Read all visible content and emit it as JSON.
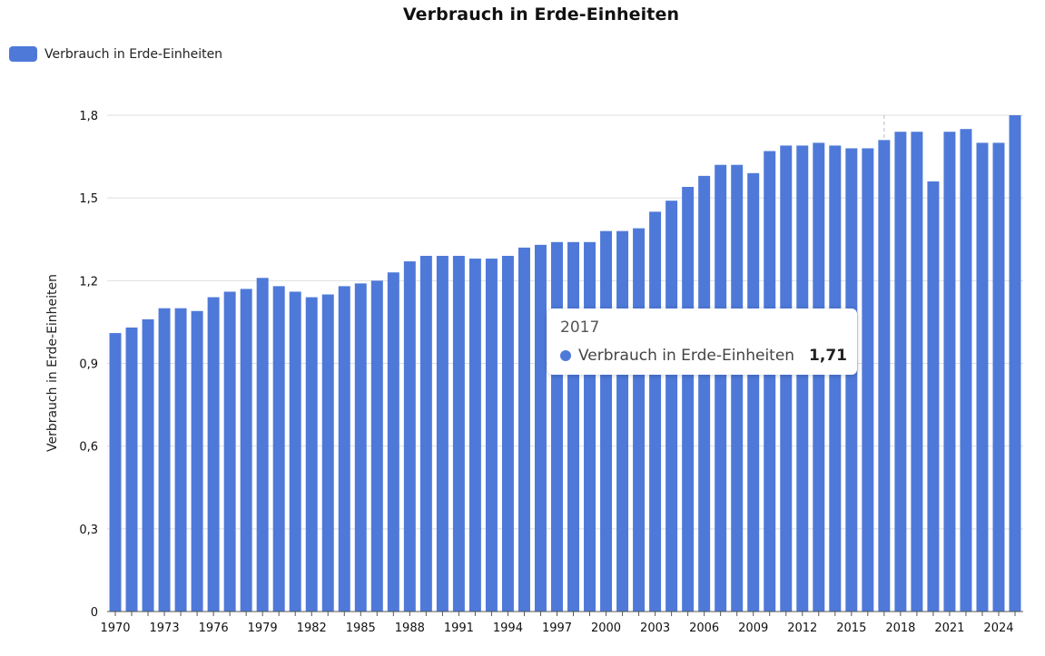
{
  "colors": {
    "bar": "#4e79d9",
    "grid": "#dedede",
    "axis": "#555555",
    "crosshair": "#bbbbbb"
  },
  "chart_data": {
    "type": "bar",
    "title": "Verbrauch in Erde-Einheiten",
    "xlabel": "",
    "ylabel": "Verbrauch in Erde-Einheiten",
    "legend_position": "top-left",
    "grid": true,
    "ylim": [
      0,
      1.8
    ],
    "yticks": [
      "0",
      "0,3",
      "0,6",
      "0,9",
      "1,2",
      "1,5",
      "1,8"
    ],
    "ytick_values": [
      0,
      0.3,
      0.6,
      0.9,
      1.2,
      1.5,
      1.8
    ],
    "x_tick_labels": [
      "1970",
      "1973",
      "1976",
      "1979",
      "1982",
      "1985",
      "1988",
      "1991",
      "1994",
      "1997",
      "2000",
      "2003",
      "2006",
      "2009",
      "2012",
      "2015",
      "2018",
      "2021",
      "2024"
    ],
    "categories": [
      "1970",
      "1971",
      "1972",
      "1973",
      "1974",
      "1975",
      "1976",
      "1977",
      "1978",
      "1979",
      "1980",
      "1981",
      "1982",
      "1983",
      "1984",
      "1985",
      "1986",
      "1987",
      "1988",
      "1989",
      "1990",
      "1991",
      "1992",
      "1993",
      "1994",
      "1995",
      "1996",
      "1997",
      "1998",
      "1999",
      "2000",
      "2001",
      "2002",
      "2003",
      "2004",
      "2005",
      "2006",
      "2007",
      "2008",
      "2009",
      "2010",
      "2011",
      "2012",
      "2013",
      "2014",
      "2015",
      "2016",
      "2017",
      "2018",
      "2019",
      "2020",
      "2021",
      "2022",
      "2023",
      "2024",
      "2025"
    ],
    "series": [
      {
        "name": "Verbrauch in Erde-Einheiten",
        "values": [
          1.01,
          1.03,
          1.06,
          1.1,
          1.1,
          1.09,
          1.14,
          1.16,
          1.17,
          1.21,
          1.18,
          1.16,
          1.14,
          1.15,
          1.18,
          1.19,
          1.2,
          1.23,
          1.27,
          1.29,
          1.29,
          1.29,
          1.28,
          1.28,
          1.29,
          1.32,
          1.33,
          1.34,
          1.34,
          1.34,
          1.38,
          1.38,
          1.39,
          1.45,
          1.49,
          1.54,
          1.58,
          1.62,
          1.62,
          1.59,
          1.67,
          1.69,
          1.69,
          1.7,
          1.69,
          1.68,
          1.68,
          1.71,
          1.74,
          1.74,
          1.56,
          1.74,
          1.75,
          1.7,
          1.7,
          1.8
        ]
      }
    ]
  },
  "tooltip": {
    "category": "2017",
    "series_name": "Verbrauch in Erde-Einheiten",
    "value": "1,71"
  }
}
